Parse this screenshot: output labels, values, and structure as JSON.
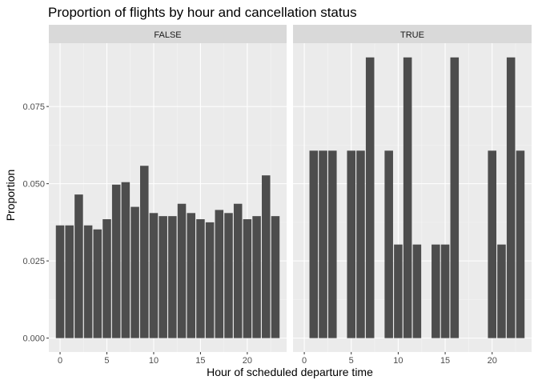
{
  "chart_data": {
    "type": "bar",
    "title": "Proportion of flights by hour and cancellation status",
    "xlabel": "Hour of scheduled departure time",
    "ylabel": "Proportion",
    "xlim": [
      -1.2,
      24.2
    ],
    "ylim": [
      -0.0045,
      0.0955
    ],
    "x_ticks": [
      0,
      5,
      10,
      15,
      20
    ],
    "x_tick_labels": [
      "0",
      "5",
      "10",
      "15",
      "20"
    ],
    "y_ticks": [
      0,
      0.025,
      0.05,
      0.075
    ],
    "y_tick_labels": [
      "0.000",
      "0.025",
      "0.050",
      "0.075"
    ],
    "grid": true,
    "bar_color": "#4d4d4d",
    "panel_background": "#ebebeb",
    "strip_background": "#d9d9d9",
    "panels": [
      {
        "label": "FALSE",
        "x": [
          0,
          1,
          2,
          3,
          4,
          5,
          6,
          7,
          8,
          9,
          10,
          11,
          12,
          13,
          14,
          15,
          16,
          17,
          18,
          19,
          20,
          21,
          22,
          23
        ],
        "values": [
          0.0365,
          0.0365,
          0.0465,
          0.0365,
          0.0352,
          0.0385,
          0.0497,
          0.0505,
          0.0425,
          0.0558,
          0.0405,
          0.0395,
          0.0395,
          0.0435,
          0.0405,
          0.0385,
          0.0375,
          0.0415,
          0.0405,
          0.0435,
          0.0385,
          0.0395,
          0.0527,
          0.0395
        ]
      },
      {
        "label": "TRUE",
        "x": [
          1,
          2,
          3,
          5,
          6,
          7,
          9,
          10,
          11,
          12,
          14,
          15,
          16,
          20,
          21,
          22,
          23
        ],
        "values": [
          0.0607,
          0.0607,
          0.0607,
          0.0607,
          0.0607,
          0.0909,
          0.0607,
          0.0303,
          0.0909,
          0.0303,
          0.0303,
          0.0303,
          0.0909,
          0.0607,
          0.0303,
          0.0909,
          0.0607
        ]
      }
    ]
  }
}
